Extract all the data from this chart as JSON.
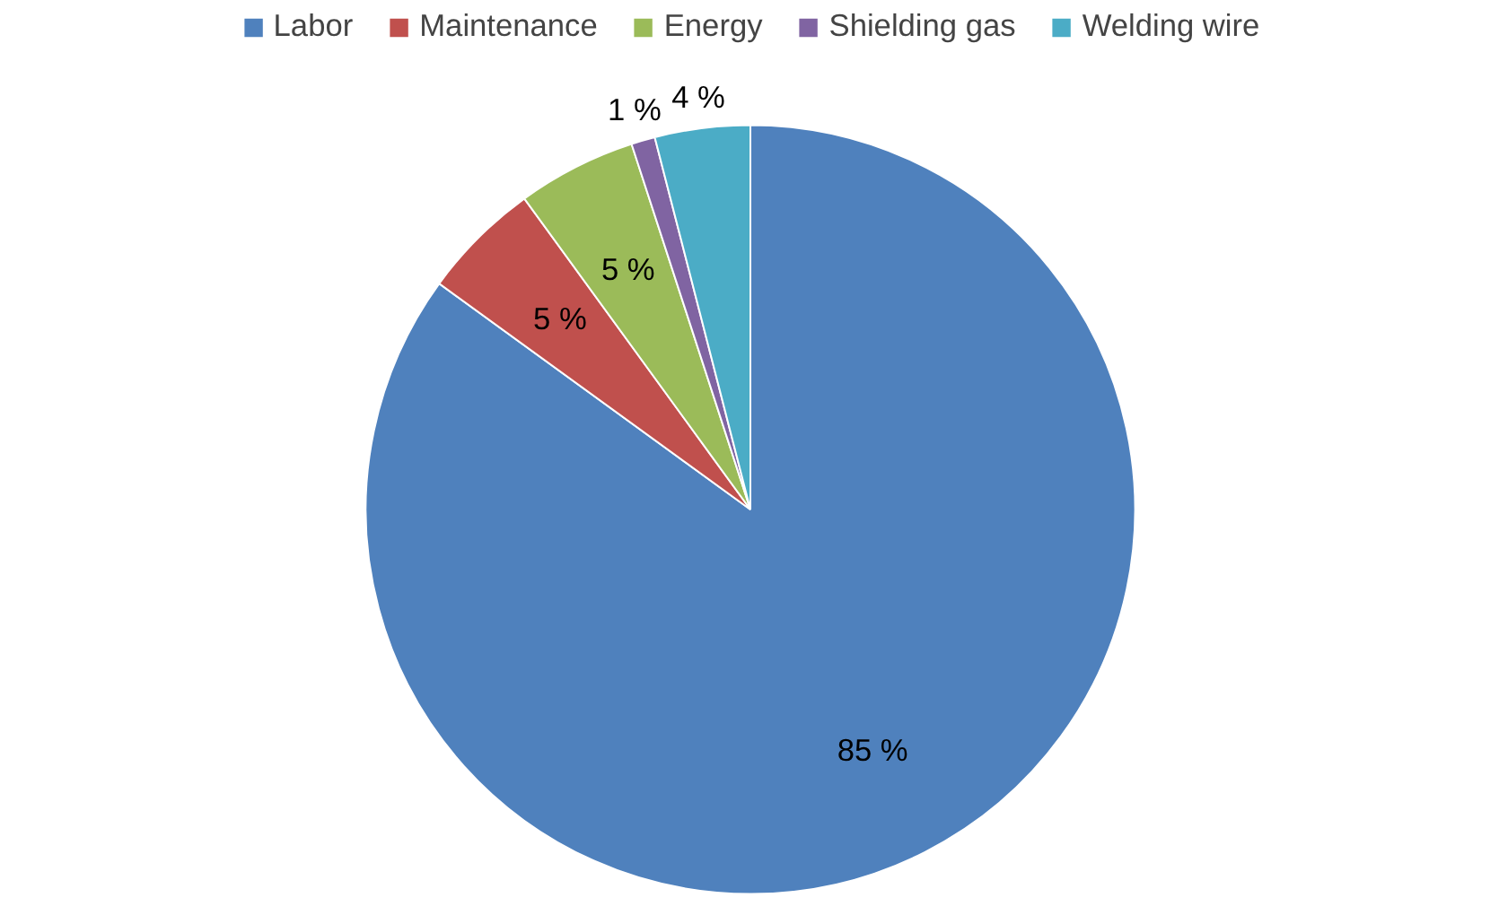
{
  "chart_data": {
    "type": "pie",
    "categories": [
      "Labor",
      "Maintenance",
      "Energy",
      "Shielding gas",
      "Welding wire"
    ],
    "values": [
      85,
      5,
      5,
      1,
      4
    ],
    "colors": [
      "#4f81bd",
      "#c0504d",
      "#9bbb59",
      "#8064a2",
      "#4bacc6"
    ],
    "value_labels": [
      "85 %",
      "5 %",
      "5 %",
      "1 %",
      "4 %"
    ],
    "legend": "top"
  }
}
